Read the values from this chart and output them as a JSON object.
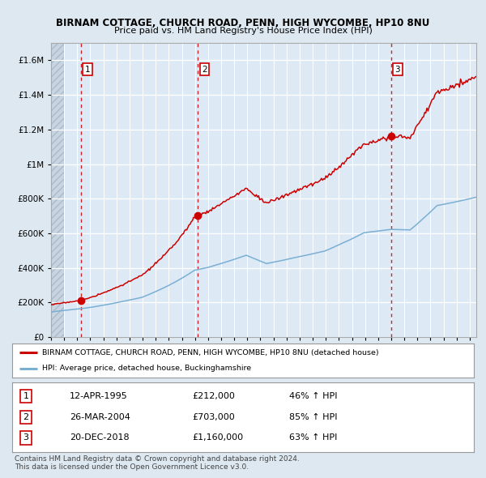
{
  "title1": "BIRNAM COTTAGE, CHURCH ROAD, PENN, HIGH WYCOMBE, HP10 8NU",
  "title2": "Price paid vs. HM Land Registry's House Price Index (HPI)",
  "legend_line1": "BIRNAM COTTAGE, CHURCH ROAD, PENN, HIGH WYCOMBE, HP10 8NU (detached house)",
  "legend_line2": "HPI: Average price, detached house, Buckinghamshire",
  "sale1_date": "12-APR-1995",
  "sale1_price": 212000,
  "sale1_hpi": "46% ↑ HPI",
  "sale1_num": "1",
  "sale2_date": "26-MAR-2004",
  "sale2_price": 703000,
  "sale2_hpi": "85% ↑ HPI",
  "sale2_num": "2",
  "sale3_date": "20-DEC-2018",
  "sale3_price": 1160000,
  "sale3_hpi": "63% ↑ HPI",
  "sale3_num": "3",
  "footer": "Contains HM Land Registry data © Crown copyright and database right 2024.\nThis data is licensed under the Open Government Licence v3.0.",
  "red_color": "#cc0000",
  "blue_color": "#7aafd4",
  "bg_color": "#dde8f0",
  "plot_bg": "#ddeaf5",
  "grid_color": "#ffffff",
  "ylim_max": 1700000,
  "sale1_year": 1995.29,
  "sale2_year": 2004.23,
  "sale3_year": 2018.97,
  "xmin": 1993.0,
  "xmax": 2025.5
}
